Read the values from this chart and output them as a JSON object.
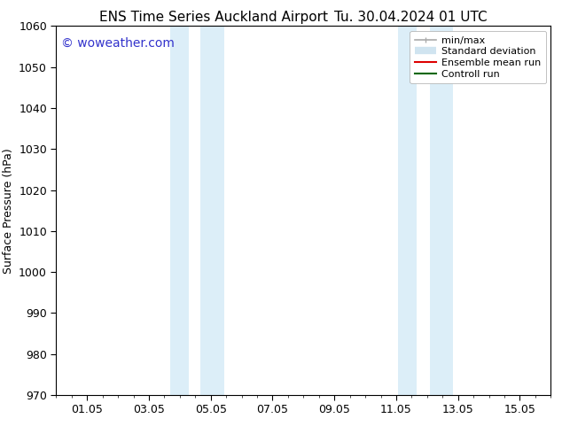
{
  "title_left": "ENS Time Series Auckland Airport",
  "title_right": "Tu. 30.04.2024 01 UTC",
  "ylabel": "Surface Pressure (hPa)",
  "ylim": [
    970,
    1060
  ],
  "yticks": [
    970,
    980,
    990,
    1000,
    1010,
    1020,
    1030,
    1040,
    1050,
    1060
  ],
  "xlim": [
    0.0,
    16.0
  ],
  "xtick_positions": [
    1,
    3,
    5,
    7,
    9,
    11,
    13,
    15
  ],
  "xtick_labels": [
    "01.05",
    "03.05",
    "05.05",
    "07.05",
    "09.05",
    "11.05",
    "13.05",
    "15.05"
  ],
  "watermark": "© woweather.com",
  "watermark_color": "#3333cc",
  "shaded_bands": [
    {
      "x_start": 3.7,
      "x_end": 4.3
    },
    {
      "x_start": 4.65,
      "x_end": 5.45
    },
    {
      "x_start": 11.05,
      "x_end": 11.65
    },
    {
      "x_start": 12.1,
      "x_end": 12.85
    }
  ],
  "shaded_color": "#dceef8",
  "background_color": "#ffffff",
  "legend_labels": [
    "min/max",
    "Standard deviation",
    "Ensemble mean run",
    "Controll run"
  ],
  "legend_colors": [
    "#aaaaaa",
    "#d0e4f0",
    "#dd0000",
    "#006600"
  ],
  "title_fontsize": 11,
  "axis_fontsize": 9,
  "tick_fontsize": 9,
  "watermark_fontsize": 10,
  "legend_fontsize": 8
}
